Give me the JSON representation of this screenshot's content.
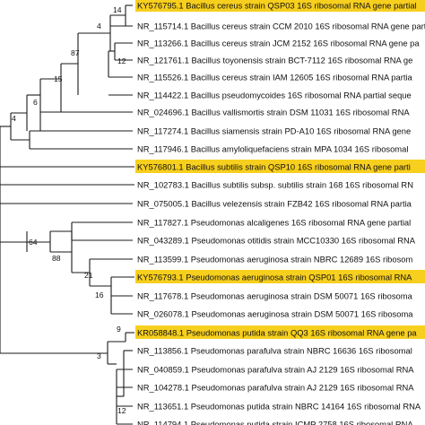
{
  "tree": {
    "leaves": [
      {
        "label": "KY576795.1 Bacillus cereus strain QSP03 16S ribosomal RNA gene partial",
        "highlight": true
      },
      {
        "label": "NR_115714.1 Bacillus cereus strain CCM 2010 16S ribosomal RNA gene part",
        "highlight": false
      },
      {
        "label": "NR_113266.1 Bacillus cereus strain JCM 2152 16S ribosomal RNA gene pa",
        "highlight": false
      },
      {
        "label": "NR_121761.1 Bacillus toyonensis strain BCT-7112 16S ribosomal RNA ge",
        "highlight": false
      },
      {
        "label": "NR_115526.1 Bacillus cereus strain IAM 12605 16S ribosomal RNA partia",
        "highlight": false
      },
      {
        "label": "NR_114422.1 Bacillus pseudomycoides 16S ribosomal RNA partial seque",
        "highlight": false
      },
      {
        "label": "NR_024696.1 Bacillus vallismortis strain DSM 11031 16S ribosomal RNA",
        "highlight": false
      },
      {
        "label": "NR_117274.1 Bacillus siamensis strain PD-A10 16S ribosomal RNA gene",
        "highlight": false
      },
      {
        "label": "NR_117946.1 Bacillus amyloliquefaciens strain MPA 1034 16S ribosomal",
        "highlight": false
      },
      {
        "label": "KY576801.1 Bacillus subtilis strain QSP10 16S ribosomal RNA gene parti",
        "highlight": true
      },
      {
        "label": "NR_102783.1 Bacillus subtilis subsp. subtilis strain 168 16S ribosomal RN",
        "highlight": false
      },
      {
        "label": "NR_075005.1 Bacillus velezensis strain FZB42 16S ribosomal RNA partia",
        "highlight": false
      },
      {
        "label": "NR_117827.1 Pseudomonas alcaligenes 16S ribosomal RNA gene partial",
        "highlight": false
      },
      {
        "label": "NR_043289.1 Pseudomonas otitidis strain MCC10330 16S ribosomal RNA",
        "highlight": false
      },
      {
        "label": "NR_113599.1 Pseudomonas aeruginosa strain NBRC 12689 16S ribosom",
        "highlight": false
      },
      {
        "label": "KY576793.1 Pseudomonas aeruginosa strain QSP01 16S ribosomal RNA",
        "highlight": true
      },
      {
        "label": "NR_117678.1 Pseudomonas aeruginosa strain DSM 50071 16S ribosoma",
        "highlight": false
      },
      {
        "label": "NR_026078.1 Pseudomonas aeruginosa strain DSM 50071 16S ribosoma",
        "highlight": false
      },
      {
        "label": "KR058848.1 Pseudomonas putida strain QQ3 16S ribosomal RNA gene pa",
        "highlight": true
      },
      {
        "label": "NR_113856.1 Pseudomonas parafulva strain NBRC 16636 16S ribosomal",
        "highlight": false
      },
      {
        "label": "NR_040859.1 Pseudomonas parafulva strain AJ 2129 16S ribosomal RNA",
        "highlight": false
      },
      {
        "label": "NR_104278.1 Pseudomonas parafulva strain AJ 2129 16S ribosomal RNA",
        "highlight": false
      },
      {
        "label": "NR_113651.1 Pseudomonas putida strain NBRC 14164 16S ribosomal RNA",
        "highlight": false
      },
      {
        "label": "NR_114794.1 Pseudomonas putida strain ICMP 2758 16S ribosomal RNA",
        "highlight": false
      }
    ],
    "bootstrap_values": [
      "14",
      "4",
      "12",
      "87",
      "15",
      "6",
      "4",
      "64",
      "88",
      "21",
      "16",
      "9",
      "3",
      "12"
    ],
    "highlight_color": "#f7cf1e"
  }
}
